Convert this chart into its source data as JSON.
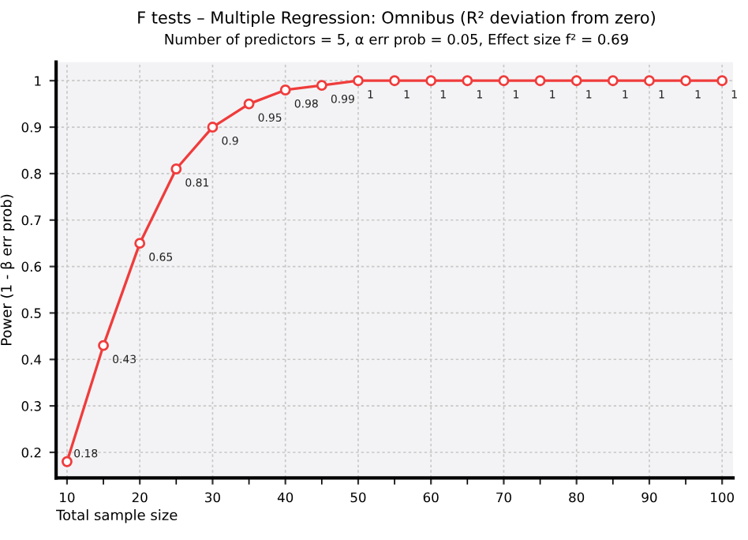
{
  "chart_data": {
    "type": "line",
    "title": "F tests – Multiple Regression: Omnibus (R² deviation from zero)",
    "subtitle": "Number of predictors = 5, α err prob = 0.05, Effect size f² = 0.69",
    "xlabel": "Total sample size",
    "ylabel": "Power (1 - β err prob)",
    "x": [
      10,
      15,
      20,
      25,
      30,
      35,
      40,
      45,
      50,
      55,
      60,
      65,
      70,
      75,
      80,
      85,
      90,
      95,
      100
    ],
    "series": [
      {
        "color": "#f03c3c",
        "values": [
          0.18,
          0.43,
          0.65,
          0.81,
          0.9,
          0.95,
          0.98,
          0.99,
          1,
          1,
          1,
          1,
          1,
          1,
          1,
          1,
          1,
          1,
          1
        ]
      }
    ],
    "data_labels": true,
    "marker": "circle",
    "line_style": "solid",
    "grid": true,
    "legend": false,
    "xlim": [
      8.5,
      101.5
    ],
    "ylim": [
      0.145,
      1.04
    ],
    "xticks": [
      10,
      {
        "value": 15,
        "label": null
      },
      20,
      {
        "value": 25,
        "label": null
      },
      30,
      {
        "value": 35,
        "label": null
      },
      40,
      {
        "value": 45,
        "label": null
      },
      50,
      {
        "value": 55,
        "label": null
      },
      60,
      {
        "value": 65,
        "label": null
      },
      70,
      {
        "value": 75,
        "label": null
      },
      80,
      {
        "value": 85,
        "label": null
      },
      90,
      {
        "value": 95,
        "label": null
      },
      100
    ],
    "yticks": [
      0.2,
      0.3,
      0.4,
      0.5,
      0.6,
      0.7,
      0.8,
      0.9,
      1
    ]
  }
}
